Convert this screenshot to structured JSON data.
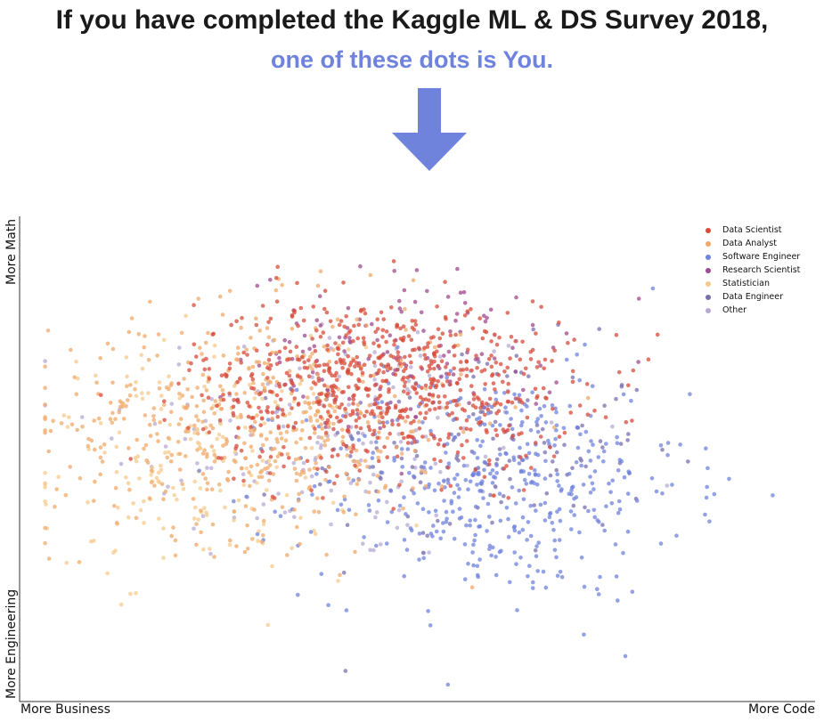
{
  "header": {
    "line1": "If you have completed the Kaggle ML & DS Survey 2018,",
    "line2": "one of these dots is You.",
    "accent_color": "#6f82dc"
  },
  "chart_data": {
    "type": "scatter",
    "title": "",
    "y_axis_labels": {
      "top": "More Math",
      "bottom": "More Engineering"
    },
    "x_axis_labels": {
      "left": "More Business",
      "right": "More Code"
    },
    "xlim": [
      0,
      1
    ],
    "ylim": [
      0,
      1
    ],
    "grid": false,
    "legend_position": "top-right",
    "series": [
      {
        "name": "Data Scientist",
        "color": "#d84b3a",
        "center": [
          0.46,
          0.66
        ],
        "spread": [
          0.12,
          0.09
        ],
        "count": 700
      },
      {
        "name": "Data Analyst",
        "color": "#f0a96a",
        "center": [
          0.3,
          0.58
        ],
        "spread": [
          0.13,
          0.12
        ],
        "count": 500
      },
      {
        "name": "Software Engineer",
        "color": "#6f82dc",
        "center": [
          0.6,
          0.45
        ],
        "spread": [
          0.12,
          0.12
        ],
        "count": 450
      },
      {
        "name": "Research Scientist",
        "color": "#a04a8c",
        "center": [
          0.48,
          0.72
        ],
        "spread": [
          0.1,
          0.09
        ],
        "count": 140
      },
      {
        "name": "Statistician",
        "color": "#f5c98c",
        "center": [
          0.22,
          0.5
        ],
        "spread": [
          0.1,
          0.12
        ],
        "count": 180
      },
      {
        "name": "Data Engineer",
        "color": "#7a6fae",
        "center": [
          0.58,
          0.52
        ],
        "spread": [
          0.11,
          0.11
        ],
        "count": 140
      },
      {
        "name": "Other",
        "color": "#b7a9d4",
        "center": [
          0.4,
          0.55
        ],
        "spread": [
          0.15,
          0.14
        ],
        "count": 160
      }
    ]
  }
}
